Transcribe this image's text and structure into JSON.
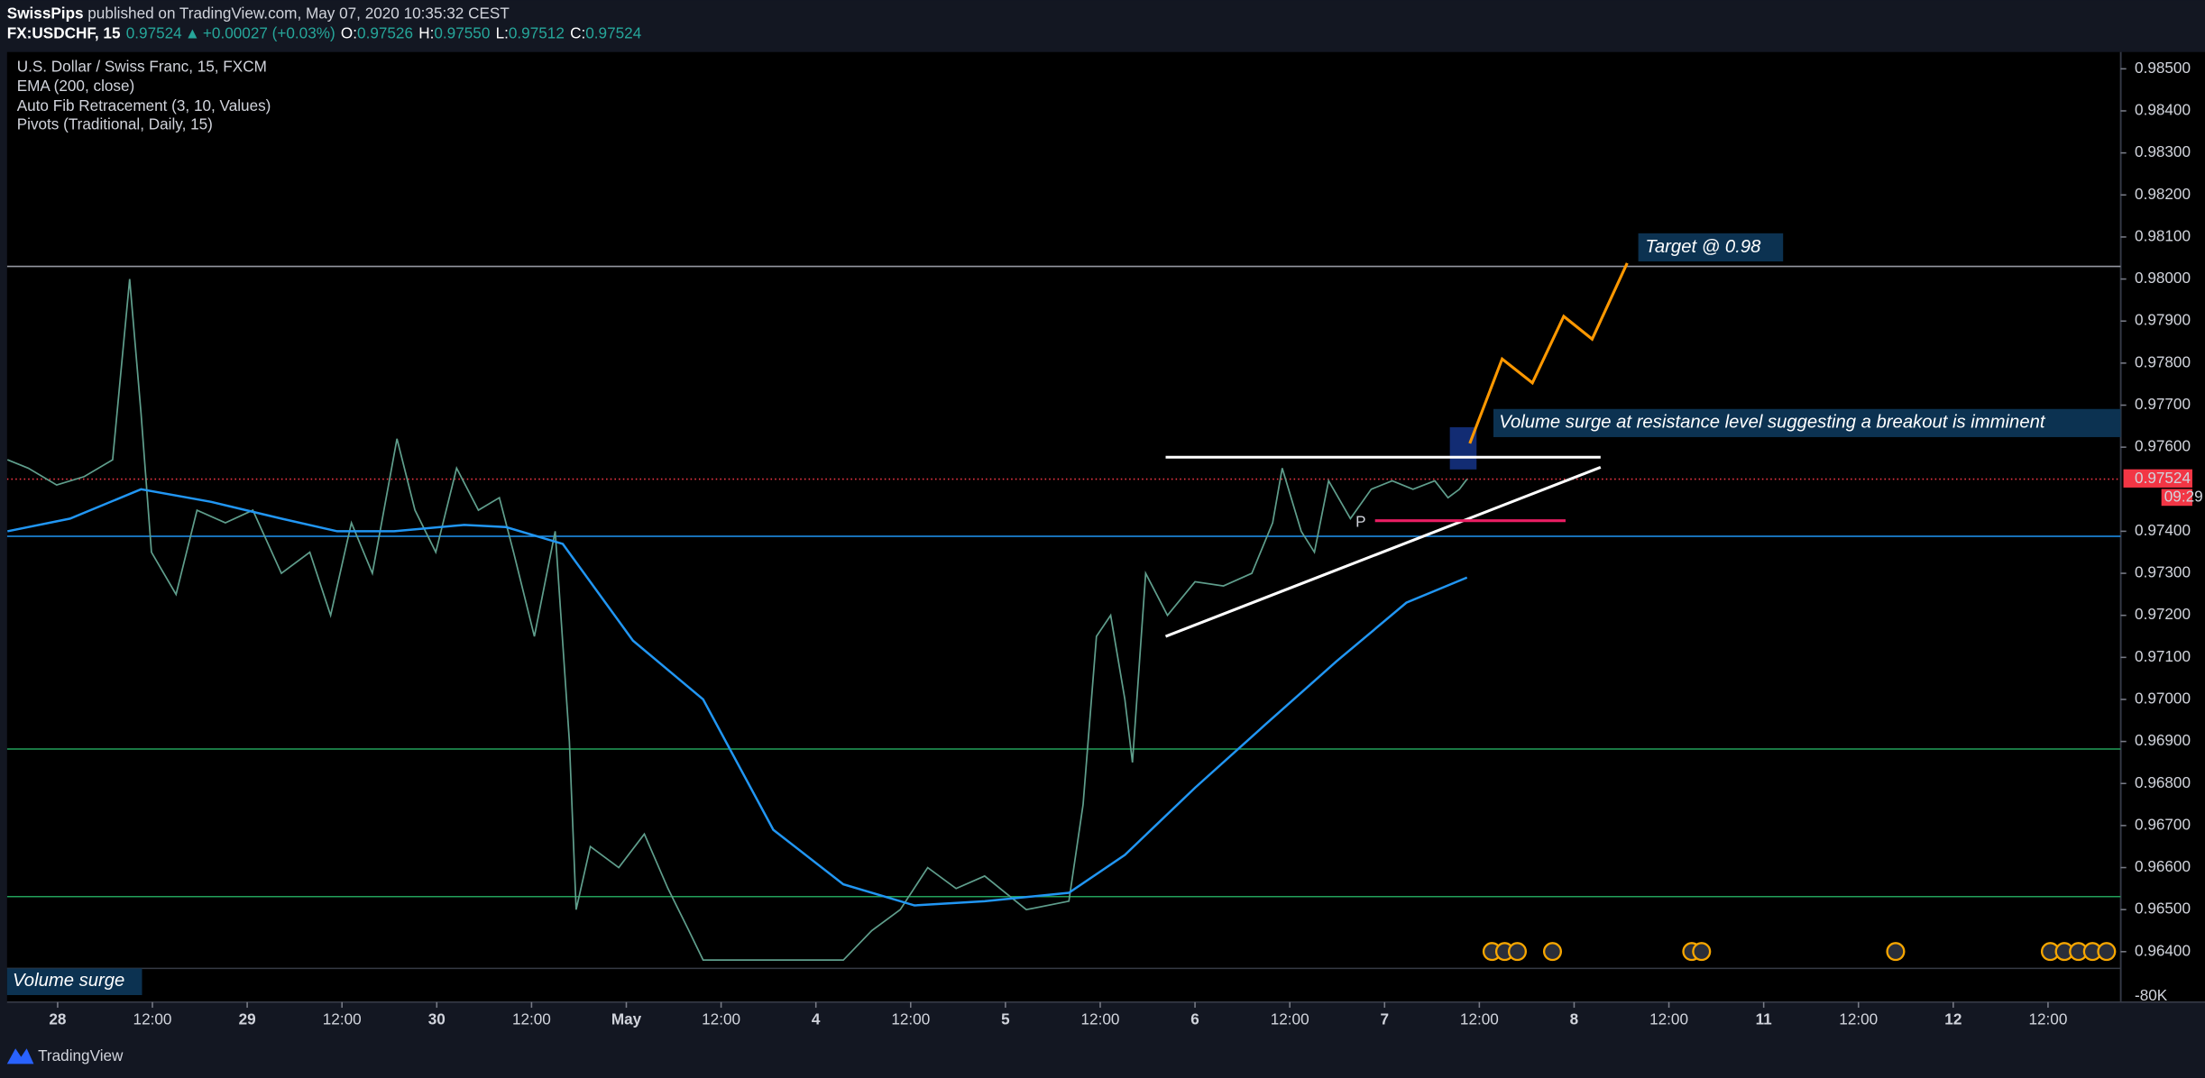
{
  "header": {
    "author": "SwissPips",
    "published": "published on TradingView.com, May 07, 2020 10:35:32 CEST",
    "symbol": "FX:USDCHF, 15",
    "last": "0.97524",
    "arrow": "▲",
    "change": "+0.00027 (+0.03%)",
    "ohlc": [
      {
        "label": "O:",
        "value": "0.97526"
      },
      {
        "label": "H:",
        "value": "0.97550"
      },
      {
        "label": "L:",
        "value": "0.97512"
      },
      {
        "label": "C:",
        "value": "0.97524"
      }
    ]
  },
  "chart_data": {
    "type": "line",
    "title": "U.S. Dollar / Swiss Franc, 15, FXCM",
    "indicators": [
      "EMA (200, close)",
      "Auto Fib Retracement (3, 10, Values)",
      "Pivots (Traditional, Daily, 15)"
    ],
    "series": [
      {
        "color": "#5f9e8c",
        "x": [
          -0.53,
          -0.31,
          -0.01,
          0.28,
          0.58,
          0.76,
          0.88,
          0.99,
          1.25,
          1.47,
          1.77,
          2.06,
          2.36,
          2.66,
          2.88,
          3.1,
          3.32,
          3.58,
          3.77,
          3.99,
          4.21,
          4.44,
          4.66,
          4.81,
          5.03,
          5.25,
          5.4,
          5.47,
          5.62,
          5.92,
          6.19,
          6.44,
          6.66,
          6.81,
          8.29,
          8.59,
          8.89,
          9.18,
          9.48,
          9.78,
          10.22,
          10.67,
          10.82,
          10.96,
          11.11,
          11.26,
          11.34,
          11.48,
          11.71,
          12.0,
          12.3,
          12.6,
          12.82,
          12.92,
          13.12,
          13.26,
          13.41,
          13.64,
          13.86,
          14.08,
          14.3,
          14.53,
          14.67,
          14.79,
          14.87
        ],
        "values": [
          0.9757,
          0.9755,
          0.9751,
          0.9753,
          0.9757,
          0.98,
          0.9768,
          0.9735,
          0.9725,
          0.9745,
          0.9742,
          0.9745,
          0.973,
          0.9735,
          0.972,
          0.9742,
          0.973,
          0.9762,
          0.9745,
          0.9735,
          0.9755,
          0.9745,
          0.9748,
          0.9735,
          0.9715,
          0.974,
          0.969,
          0.965,
          0.9665,
          0.966,
          0.9668,
          0.9655,
          0.9645,
          0.9638,
          0.9638,
          0.9645,
          0.965,
          0.966,
          0.9655,
          0.9658,
          0.965,
          0.9652,
          0.9675,
          0.9715,
          0.972,
          0.97,
          0.9685,
          0.973,
          0.972,
          0.9728,
          0.9727,
          0.973,
          0.9742,
          0.9755,
          0.974,
          0.9735,
          0.9752,
          0.9743,
          0.975,
          0.9752,
          0.975,
          0.9752,
          0.9748,
          0.975,
          0.97524
        ]
      },
      {
        "color": "#2196f3",
        "x": [
          -0.53,
          0.13,
          0.88,
          1.62,
          2.36,
          2.95,
          3.55,
          4.29,
          4.73,
          5.33,
          6.07,
          6.81,
          7.55,
          8.29,
          9.04,
          9.78,
          10.67,
          11.26,
          12.0,
          12.74,
          13.49,
          14.23,
          14.87
        ],
        "values": [
          0.974,
          0.9743,
          0.975,
          0.9747,
          0.9743,
          0.974,
          0.974,
          0.97415,
          0.9741,
          0.9737,
          0.9714,
          0.97,
          0.9669,
          0.9656,
          0.9651,
          0.9652,
          0.9654,
          0.9663,
          0.9679,
          0.9694,
          0.9709,
          0.9723,
          0.9729
        ]
      }
    ],
    "levels": [
      {
        "value": 0.9803,
        "color": "#9598a1"
      },
      {
        "value": 0.97388,
        "color": "#2196f3"
      },
      {
        "value": 0.96882,
        "color": "#22a05a"
      },
      {
        "value": 0.96531,
        "color": "#22a05a"
      },
      {
        "value": 0.97524,
        "color": "#f23645",
        "dotted": true
      }
    ],
    "drawings": [
      {
        "color": "#ffffff",
        "x": [
          11.69,
          16.28
        ],
        "y": [
          0.97576,
          0.97576
        ]
      },
      {
        "color": "#ffffff",
        "x": [
          11.69,
          16.28
        ],
        "y": [
          0.9715,
          0.97552
        ]
      },
      {
        "color": "#e91e63",
        "x": [
          13.9,
          15.91
        ],
        "y": [
          0.97425,
          0.97425
        ]
      },
      {
        "color": "#ff9800",
        "x": [
          14.9,
          15.24,
          15.56,
          15.89,
          16.19,
          16.56
        ],
        "y": [
          0.97609,
          0.9781,
          0.97753,
          0.97911,
          0.97857,
          0.98038
        ]
      }
    ],
    "last_price": {
      "value": 0.97524,
      "label": "0.97524"
    },
    "countdown": "09:29",
    "annotations": [
      "Target @ 0.98",
      "Volume surge at resistance level suggesting a breakout is imminent",
      "Volume surge"
    ],
    "pivot_label": "P",
    "volume_axis_label": "-80K",
    "xlim": [
      -0.534,
      21.766
    ],
    "xticks": [
      {
        "value": 0,
        "label": "28"
      },
      {
        "value": 1,
        "label": "12:00"
      },
      {
        "value": 2,
        "label": "29"
      },
      {
        "value": 3,
        "label": "12:00"
      },
      {
        "value": 4,
        "label": "30"
      },
      {
        "value": 5,
        "label": "12:00"
      },
      {
        "value": 6,
        "label": "May"
      },
      {
        "value": 7,
        "label": "12:00"
      },
      {
        "value": 8,
        "label": "4"
      },
      {
        "value": 9,
        "label": "12:00"
      },
      {
        "value": 10,
        "label": "5"
      },
      {
        "value": 11,
        "label": "12:00"
      },
      {
        "value": 12,
        "label": "6"
      },
      {
        "value": 13,
        "label": "12:00"
      },
      {
        "value": 14,
        "label": "7"
      },
      {
        "value": 15,
        "label": "12:00"
      },
      {
        "value": 16,
        "label": "8"
      },
      {
        "value": 17,
        "label": "12:00"
      },
      {
        "value": 18,
        "label": "11"
      },
      {
        "value": 19,
        "label": "12:00"
      },
      {
        "value": 20,
        "label": "12"
      },
      {
        "value": 21,
        "label": "12:00"
      }
    ],
    "ylim": [
      0.9628,
      0.9854
    ],
    "yticks": [
      {
        "value": 0.964,
        "label": "0.96400"
      },
      {
        "value": 0.965,
        "label": "0.96500"
      },
      {
        "value": 0.966,
        "label": "0.96600"
      },
      {
        "value": 0.967,
        "label": "0.96700"
      },
      {
        "value": 0.968,
        "label": "0.96800"
      },
      {
        "value": 0.969,
        "label": "0.96900"
      },
      {
        "value": 0.97,
        "label": "0.97000"
      },
      {
        "value": 0.971,
        "label": "0.97100"
      },
      {
        "value": 0.972,
        "label": "0.97200"
      },
      {
        "value": 0.973,
        "label": "0.97300"
      },
      {
        "value": 0.974,
        "label": "0.97400"
      },
      {
        "value": 0.976,
        "label": "0.97600"
      },
      {
        "value": 0.977,
        "label": "0.97700"
      },
      {
        "value": 0.978,
        "label": "0.97800"
      },
      {
        "value": 0.979,
        "label": "0.97900"
      },
      {
        "value": 0.98,
        "label": "0.98000"
      },
      {
        "value": 0.981,
        "label": "0.98100"
      },
      {
        "value": 0.982,
        "label": "0.98200"
      },
      {
        "value": 0.983,
        "label": "0.98300"
      },
      {
        "value": 0.984,
        "label": "0.98400"
      },
      {
        "value": 0.985,
        "label": "0.98500"
      }
    ]
  },
  "footer": {
    "brand": "TradingView"
  }
}
